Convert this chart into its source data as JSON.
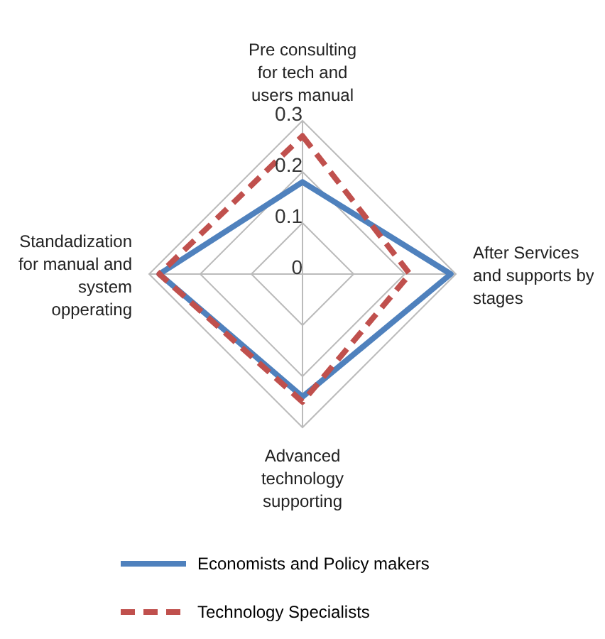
{
  "chart_data": {
    "type": "radar",
    "categories": [
      "Pre consulting for tech and users manual",
      "After Services and supports by stages",
      "Advanced technology supporting",
      "Standadization for manual and system opperating"
    ],
    "series": [
      {
        "name": "Economists and Policy makers",
        "color": "#4f81bd",
        "line_style": "solid",
        "values": [
          0.18,
          0.29,
          0.24,
          0.28
        ]
      },
      {
        "name": "Technology Specialists",
        "color": "#c0504d",
        "line_style": "dashed",
        "values": [
          0.27,
          0.21,
          0.25,
          0.28
        ]
      }
    ],
    "ylim": [
      0,
      0.3
    ],
    "yticks": [
      0,
      0.1,
      0.2,
      0.3
    ],
    "grid": true,
    "legend": "bottom",
    "marker": "none"
  }
}
